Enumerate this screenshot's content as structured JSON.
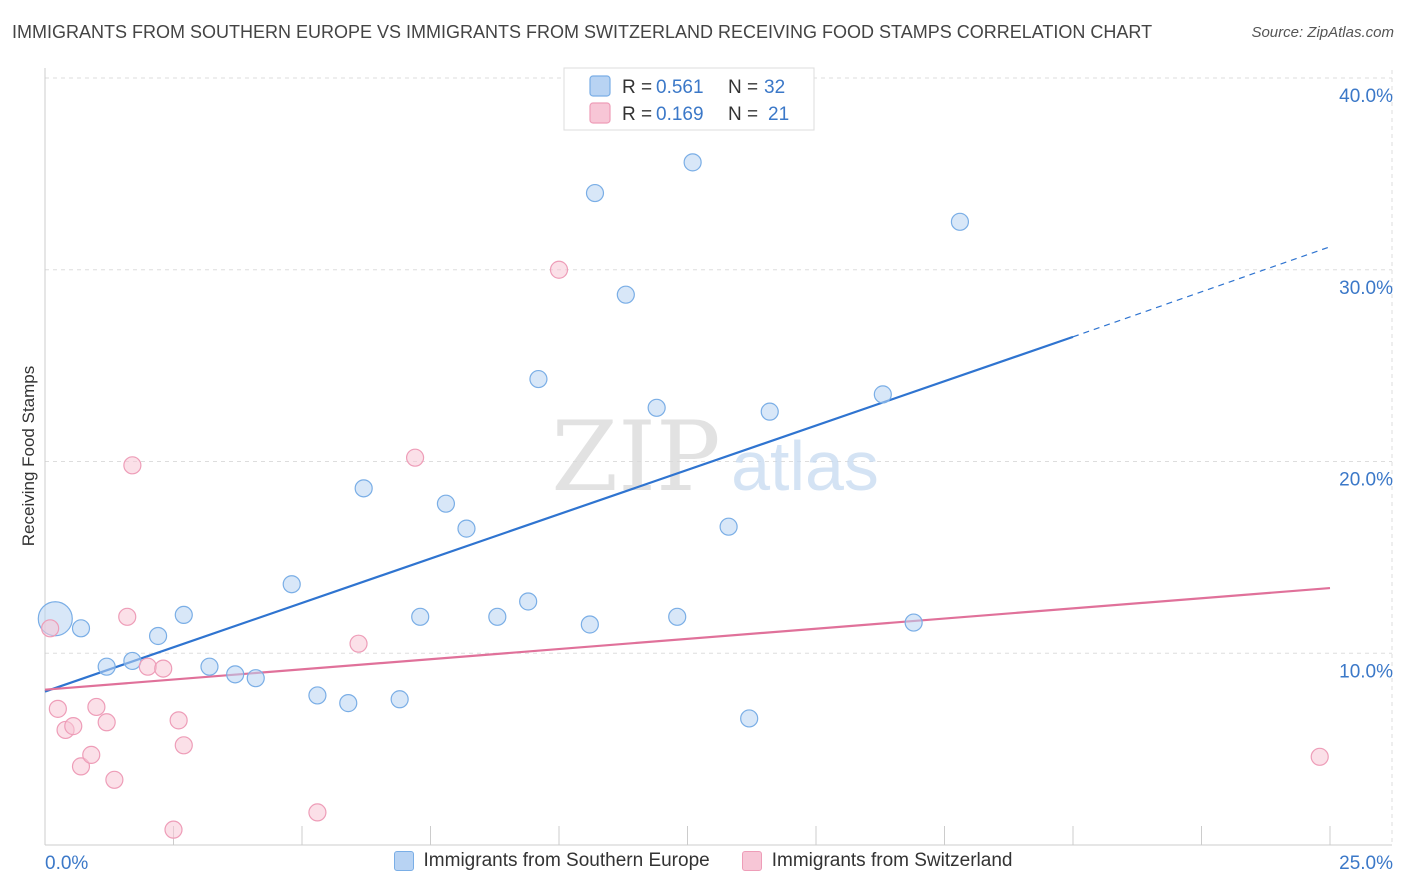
{
  "header": {
    "title": "IMMIGRANTS FROM SOUTHERN EUROPE VS IMMIGRANTS FROM SWITZERLAND RECEIVING FOOD STAMPS CORRELATION CHART",
    "source": "Source: ZipAtlas.com"
  },
  "watermark": {
    "zip": "ZIP",
    "atlas": "atlas"
  },
  "colors": {
    "blue_fill": "#b8d3f3",
    "blue_stroke": "#7aaee6",
    "blue_line": "#2f74d0",
    "pink_fill": "#f7c6d6",
    "pink_stroke": "#ee9db8",
    "pink_line": "#e0719a",
    "value_text": "#3b78c8"
  },
  "chart_data": {
    "type": "scatter",
    "xlabel": "",
    "ylabel": "Receiving Food Stamps",
    "xlim": [
      0,
      25
    ],
    "ylim": [
      0,
      40
    ],
    "x_tick_labels": [
      "0.0%",
      "25.0%"
    ],
    "y_tick_values": [
      10,
      20,
      30,
      40
    ],
    "y_tick_labels": [
      "10.0%",
      "20.0%",
      "30.0%",
      "40.0%"
    ],
    "grid": true,
    "legend": {
      "placement": "top-center",
      "entries": [
        {
          "r_label": "R = ",
          "r_value": "0.561",
          "n_label": "N = ",
          "n_value": "32"
        },
        {
          "r_label": "R = ",
          "r_value": "0.169",
          "n_label": "N = ",
          "n_value": "21"
        }
      ]
    },
    "series": [
      {
        "name": "Immigrants from Southern Europe",
        "color": "blue",
        "points": [
          [
            0.2,
            11.8
          ],
          [
            0.7,
            11.3
          ],
          [
            1.2,
            9.3
          ],
          [
            1.7,
            9.6
          ],
          [
            2.2,
            10.9
          ],
          [
            2.7,
            12.0
          ],
          [
            3.2,
            9.3
          ],
          [
            3.7,
            8.9
          ],
          [
            4.1,
            8.7
          ],
          [
            4.8,
            13.6
          ],
          [
            5.3,
            7.8
          ],
          [
            5.9,
            7.4
          ],
          [
            6.2,
            18.6
          ],
          [
            6.9,
            7.6
          ],
          [
            7.3,
            11.9
          ],
          [
            7.8,
            17.8
          ],
          [
            8.2,
            16.5
          ],
          [
            8.8,
            11.9
          ],
          [
            9.4,
            12.7
          ],
          [
            9.6,
            24.3
          ],
          [
            10.6,
            11.5
          ],
          [
            10.7,
            34.0
          ],
          [
            11.3,
            28.7
          ],
          [
            11.9,
            22.8
          ],
          [
            12.3,
            11.9
          ],
          [
            12.6,
            35.6
          ],
          [
            13.3,
            16.6
          ],
          [
            13.7,
            6.6
          ],
          [
            14.1,
            22.6
          ],
          [
            16.3,
            23.5
          ],
          [
            16.9,
            11.6
          ],
          [
            17.8,
            32.5
          ]
        ],
        "fit": {
          "x": [
            0,
            20
          ],
          "y": [
            8.0,
            26.5
          ],
          "dashed_x": [
            20,
            25
          ],
          "dashed_y": [
            26.5,
            31.2
          ]
        }
      },
      {
        "name": "Immigrants from Switzerland",
        "color": "pink",
        "points": [
          [
            0.1,
            11.3
          ],
          [
            0.25,
            7.1
          ],
          [
            0.4,
            6.0
          ],
          [
            0.55,
            6.2
          ],
          [
            0.7,
            4.1
          ],
          [
            0.9,
            4.7
          ],
          [
            1.0,
            7.2
          ],
          [
            1.2,
            6.4
          ],
          [
            1.35,
            3.4
          ],
          [
            1.6,
            11.9
          ],
          [
            1.7,
            19.8
          ],
          [
            2.0,
            9.3
          ],
          [
            2.3,
            9.2
          ],
          [
            2.5,
            0.8
          ],
          [
            2.6,
            6.5
          ],
          [
            2.7,
            5.2
          ],
          [
            5.3,
            1.7
          ],
          [
            6.1,
            10.5
          ],
          [
            7.2,
            20.2
          ],
          [
            10.0,
            30.0
          ],
          [
            24.8,
            4.6
          ]
        ],
        "fit": {
          "x": [
            0,
            25
          ],
          "y": [
            8.1,
            13.4
          ]
        }
      }
    ]
  }
}
